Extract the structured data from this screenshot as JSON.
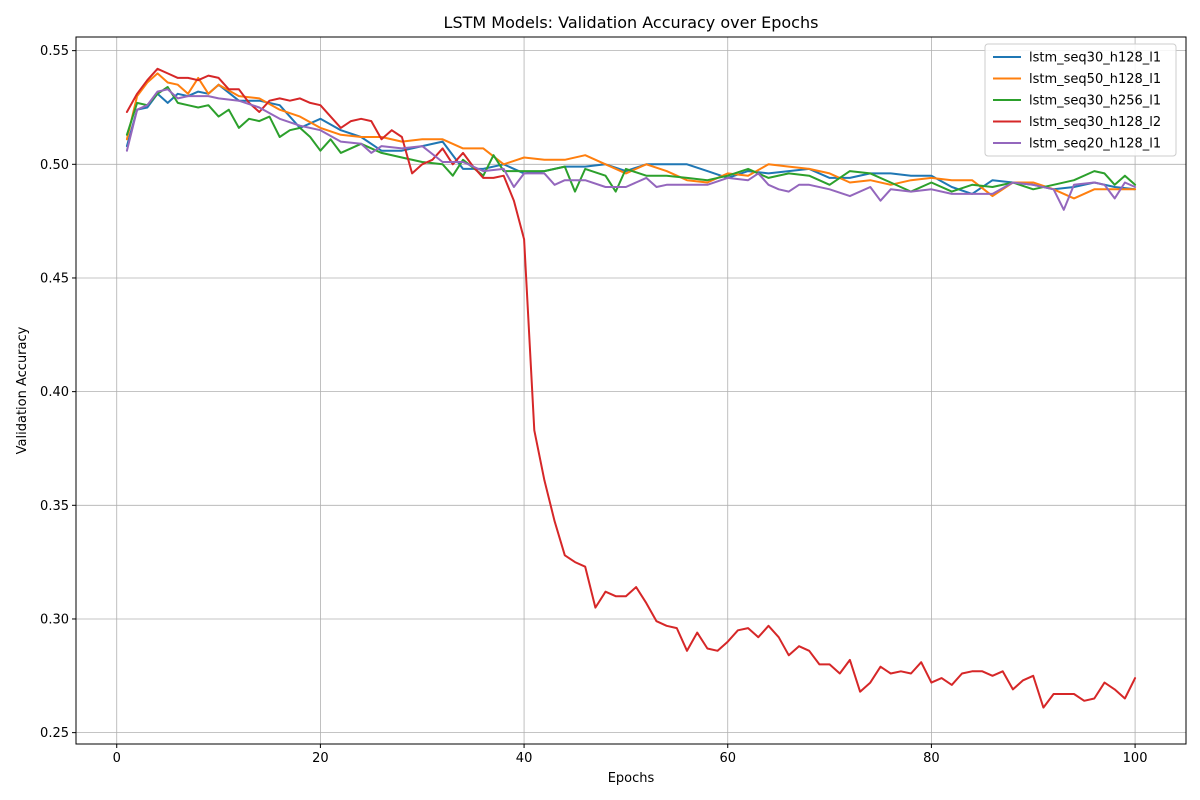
{
  "chart_data": {
    "type": "line",
    "title": "LSTM Models: Validation Accuracy over Epochs",
    "xlabel": "Epochs",
    "ylabel": "Validation Accuracy",
    "xlim": [
      -4,
      105
    ],
    "ylim": [
      0.245,
      0.556
    ],
    "xticks": [
      0,
      20,
      40,
      60,
      80,
      100
    ],
    "yticks": [
      0.25,
      0.3,
      0.35,
      0.4,
      0.45,
      0.5,
      0.55
    ],
    "ytick_labels": [
      "0.25",
      "0.30",
      "0.35",
      "0.40",
      "0.45",
      "0.50",
      "0.55"
    ],
    "grid": true,
    "legend_position": "top-right",
    "series": [
      {
        "name": "lstm_seq30_h128_l1",
        "color": "#1f77b4",
        "x": [
          1,
          2,
          3,
          4,
          5,
          6,
          7,
          8,
          9,
          10,
          12,
          14,
          16,
          18,
          20,
          22,
          24,
          26,
          28,
          30,
          32,
          34,
          36,
          38,
          40,
          42,
          44,
          46,
          48,
          50,
          52,
          54,
          56,
          58,
          60,
          62,
          64,
          66,
          68,
          70,
          72,
          74,
          76,
          78,
          80,
          82,
          84,
          86,
          88,
          90,
          92,
          94,
          96,
          98,
          100
        ],
        "y": [
          0.508,
          0.524,
          0.525,
          0.531,
          0.527,
          0.531,
          0.53,
          0.532,
          0.531,
          0.535,
          0.528,
          0.528,
          0.526,
          0.516,
          0.52,
          0.515,
          0.512,
          0.506,
          0.506,
          0.508,
          0.51,
          0.498,
          0.498,
          0.5,
          0.496,
          0.497,
          0.499,
          0.499,
          0.5,
          0.497,
          0.5,
          0.5,
          0.5,
          0.497,
          0.494,
          0.497,
          0.496,
          0.497,
          0.498,
          0.494,
          0.494,
          0.496,
          0.496,
          0.495,
          0.495,
          0.49,
          0.487,
          0.493,
          0.492,
          0.491,
          0.489,
          0.49,
          0.492,
          0.49,
          0.489
        ]
      },
      {
        "name": "lstm_seq50_h128_l1",
        "color": "#ff7f0e",
        "x": [
          1,
          2,
          3,
          4,
          5,
          6,
          7,
          8,
          9,
          10,
          12,
          14,
          16,
          18,
          20,
          22,
          24,
          26,
          28,
          30,
          32,
          34,
          36,
          38,
          40,
          42,
          44,
          46,
          48,
          50,
          52,
          54,
          56,
          58,
          60,
          62,
          64,
          66,
          68,
          70,
          72,
          74,
          76,
          78,
          80,
          82,
          84,
          86,
          88,
          90,
          92,
          94,
          96,
          98,
          100
        ],
        "y": [
          0.511,
          0.53,
          0.536,
          0.54,
          0.536,
          0.535,
          0.531,
          0.538,
          0.531,
          0.535,
          0.53,
          0.529,
          0.524,
          0.521,
          0.516,
          0.513,
          0.512,
          0.512,
          0.51,
          0.511,
          0.511,
          0.507,
          0.507,
          0.5,
          0.503,
          0.502,
          0.502,
          0.504,
          0.5,
          0.496,
          0.5,
          0.497,
          0.493,
          0.492,
          0.496,
          0.495,
          0.5,
          0.499,
          0.498,
          0.496,
          0.492,
          0.493,
          0.491,
          0.493,
          0.494,
          0.493,
          0.493,
          0.486,
          0.492,
          0.492,
          0.489,
          0.485,
          0.489,
          0.489,
          0.489
        ]
      },
      {
        "name": "lstm_seq30_h256_l1",
        "color": "#2ca02c",
        "x": [
          1,
          2,
          3,
          4,
          5,
          6,
          7,
          8,
          9,
          10,
          11,
          12,
          13,
          14,
          15,
          16,
          17,
          18,
          19,
          20,
          21,
          22,
          24,
          26,
          28,
          30,
          32,
          33,
          34,
          36,
          37,
          38,
          40,
          42,
          44,
          45,
          46,
          48,
          49,
          50,
          52,
          54,
          56,
          58,
          60,
          62,
          64,
          66,
          68,
          70,
          72,
          74,
          76,
          78,
          80,
          82,
          84,
          86,
          88,
          90,
          92,
          94,
          96,
          97,
          98,
          99,
          100
        ],
        "y": [
          0.513,
          0.527,
          0.526,
          0.531,
          0.534,
          0.527,
          0.526,
          0.525,
          0.526,
          0.521,
          0.524,
          0.516,
          0.52,
          0.519,
          0.521,
          0.512,
          0.515,
          0.516,
          0.512,
          0.506,
          0.511,
          0.505,
          0.509,
          0.505,
          0.503,
          0.501,
          0.5,
          0.495,
          0.502,
          0.495,
          0.504,
          0.497,
          0.497,
          0.497,
          0.499,
          0.488,
          0.498,
          0.495,
          0.488,
          0.498,
          0.495,
          0.495,
          0.494,
          0.493,
          0.495,
          0.498,
          0.494,
          0.496,
          0.495,
          0.491,
          0.497,
          0.496,
          0.492,
          0.488,
          0.492,
          0.488,
          0.491,
          0.49,
          0.492,
          0.489,
          0.491,
          0.493,
          0.497,
          0.496,
          0.491,
          0.495,
          0.491
        ]
      },
      {
        "name": "lstm_seq30_h128_l2",
        "color": "#d62728",
        "x": [
          1,
          2,
          3,
          4,
          5,
          6,
          7,
          8,
          9,
          10,
          11,
          12,
          13,
          14,
          15,
          16,
          17,
          18,
          19,
          20,
          21,
          22,
          23,
          24,
          25,
          26,
          27,
          28,
          29,
          30,
          31,
          32,
          33,
          34,
          35,
          36,
          37,
          38,
          39,
          40,
          41,
          42,
          43,
          44,
          45,
          46,
          47,
          48,
          49,
          50,
          51,
          52,
          53,
          54,
          55,
          56,
          57,
          58,
          59,
          60,
          61,
          62,
          63,
          64,
          65,
          66,
          67,
          68,
          69,
          70,
          71,
          72,
          73,
          74,
          75,
          76,
          77,
          78,
          79,
          80,
          81,
          82,
          83,
          84,
          85,
          86,
          87,
          88,
          89,
          90,
          91,
          92,
          93,
          94,
          95,
          96,
          97,
          98,
          99,
          100
        ],
        "y": [
          0.523,
          0.531,
          0.537,
          0.542,
          0.54,
          0.538,
          0.538,
          0.537,
          0.539,
          0.538,
          0.533,
          0.533,
          0.527,
          0.523,
          0.528,
          0.529,
          0.528,
          0.529,
          0.527,
          0.526,
          0.521,
          0.516,
          0.519,
          0.52,
          0.519,
          0.511,
          0.515,
          0.512,
          0.496,
          0.5,
          0.502,
          0.507,
          0.5,
          0.505,
          0.499,
          0.494,
          0.494,
          0.495,
          0.484,
          0.467,
          0.383,
          0.361,
          0.343,
          0.328,
          0.325,
          0.323,
          0.305,
          0.312,
          0.31,
          0.31,
          0.314,
          0.307,
          0.299,
          0.297,
          0.296,
          0.286,
          0.294,
          0.287,
          0.286,
          0.29,
          0.295,
          0.296,
          0.292,
          0.297,
          0.292,
          0.284,
          0.288,
          0.286,
          0.28,
          0.28,
          0.276,
          0.282,
          0.268,
          0.272,
          0.279,
          0.276,
          0.277,
          0.276,
          0.281,
          0.272,
          0.274,
          0.271,
          0.276,
          0.277,
          0.277,
          0.275,
          0.277,
          0.269,
          0.273,
          0.275,
          0.261,
          0.267,
          0.267,
          0.267,
          0.264,
          0.265,
          0.272,
          0.269,
          0.265,
          0.274
        ]
      },
      {
        "name": "lstm_seq20_h128_l1",
        "color": "#9467bd",
        "x": [
          1,
          2,
          3,
          4,
          5,
          6,
          7,
          8,
          9,
          10,
          12,
          14,
          16,
          18,
          20,
          22,
          24,
          25,
          26,
          28,
          30,
          32,
          34,
          36,
          38,
          39,
          40,
          42,
          43,
          44,
          46,
          48,
          50,
          52,
          53,
          54,
          56,
          58,
          60,
          62,
          63,
          64,
          65,
          66,
          67,
          68,
          70,
          72,
          74,
          75,
          76,
          78,
          80,
          82,
          84,
          86,
          88,
          90,
          92,
          93,
          94,
          96,
          97,
          98,
          99,
          100
        ],
        "y": [
          0.506,
          0.524,
          0.526,
          0.532,
          0.533,
          0.529,
          0.53,
          0.53,
          0.53,
          0.529,
          0.528,
          0.525,
          0.52,
          0.517,
          0.515,
          0.51,
          0.509,
          0.505,
          0.508,
          0.507,
          0.508,
          0.501,
          0.501,
          0.497,
          0.498,
          0.49,
          0.496,
          0.496,
          0.491,
          0.493,
          0.493,
          0.49,
          0.49,
          0.494,
          0.49,
          0.491,
          0.491,
          0.491,
          0.494,
          0.493,
          0.496,
          0.491,
          0.489,
          0.488,
          0.491,
          0.491,
          0.489,
          0.486,
          0.49,
          0.484,
          0.489,
          0.488,
          0.489,
          0.487,
          0.487,
          0.487,
          0.492,
          0.491,
          0.489,
          0.48,
          0.491,
          0.492,
          0.491,
          0.485,
          0.492,
          0.49
        ]
      }
    ]
  }
}
